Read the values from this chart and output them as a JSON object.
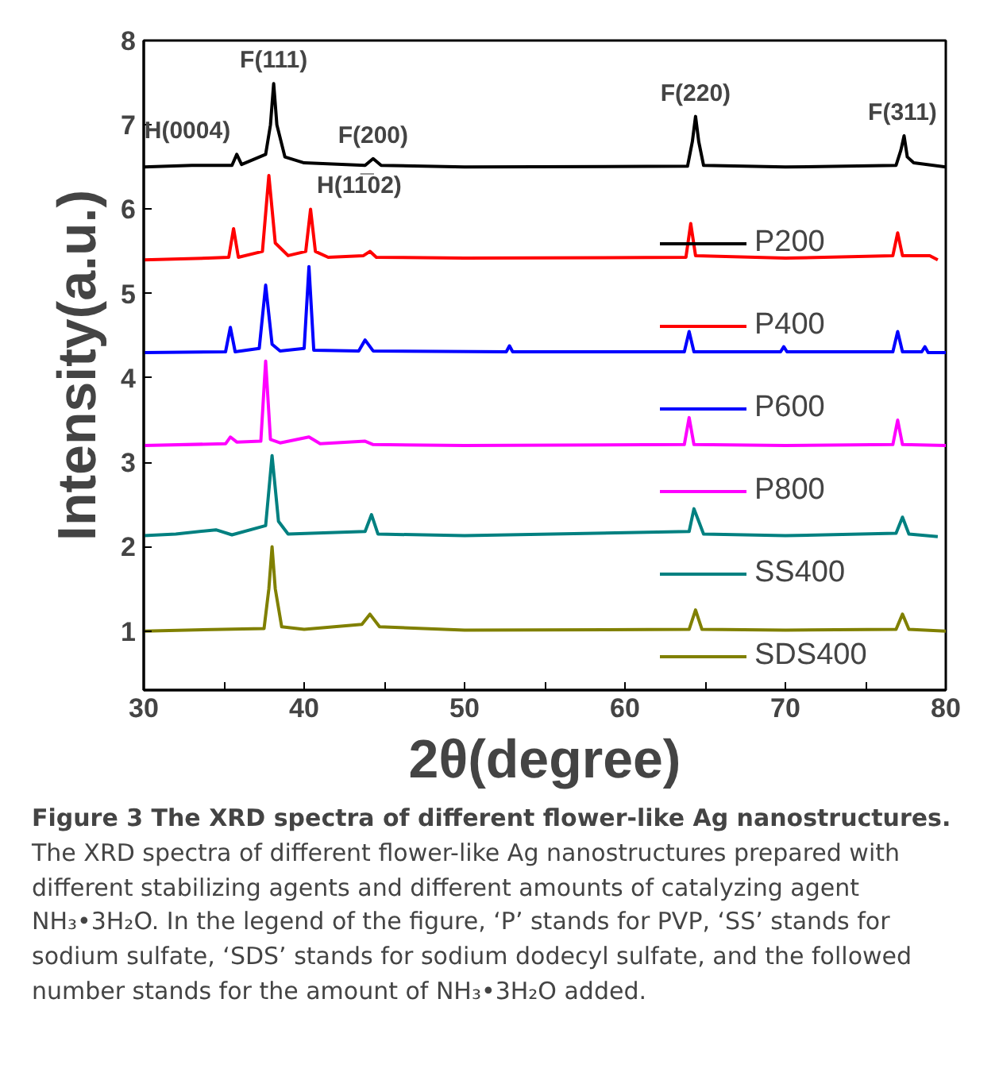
{
  "chart_data": {
    "type": "line",
    "title": "Figure 3 The XRD spectra of different flower-like Ag nanostructures.",
    "xlabel": "2θ(degree)",
    "ylabel": "Intensity(a.u.)",
    "xlim": [
      30,
      80
    ],
    "ylim": [
      0.3,
      8
    ],
    "xticks": [
      30,
      {
        "value": 35,
        "label": null
      },
      40,
      {
        "value": 45,
        "label": null
      },
      50,
      {
        "value": 55,
        "label": null
      },
      60,
      {
        "value": 65,
        "label": null
      },
      70,
      {
        "value": 75,
        "label": null
      },
      80
    ],
    "yticks": [
      1,
      2,
      3,
      4,
      5,
      6,
      7,
      8
    ],
    "grid": false,
    "legend": "right",
    "marker": "none",
    "line_style": "solid",
    "series": [
      {
        "name": "P200",
        "color": "#000000",
        "x": [
          30,
          33,
          35.5,
          35.8,
          36.1,
          37.6,
          37.9,
          38.1,
          38.3,
          38.8,
          40,
          43.8,
          44.3,
          44.8,
          50,
          63.9,
          64.2,
          64.4,
          64.6,
          64.9,
          70,
          76.9,
          77.2,
          77.4,
          77.6,
          78,
          80
        ],
        "values": [
          6.5,
          6.52,
          6.52,
          6.65,
          6.53,
          6.65,
          7.0,
          7.49,
          7.0,
          6.62,
          6.55,
          6.52,
          6.6,
          6.52,
          6.5,
          6.51,
          6.8,
          7.1,
          6.8,
          6.52,
          6.5,
          6.52,
          6.7,
          6.87,
          6.62,
          6.55,
          6.5
        ]
      },
      {
        "name": "P400",
        "color": "#ff0000",
        "x": [
          30,
          34,
          35.3,
          35.6,
          35.9,
          37.4,
          37.8,
          38.2,
          39,
          40.1,
          40.4,
          40.7,
          41.5,
          43.7,
          44.1,
          44.5,
          50,
          63.8,
          64.1,
          64.4,
          70,
          76.7,
          77.0,
          77.3,
          79,
          79.5
        ],
        "values": [
          5.4,
          5.42,
          5.43,
          5.77,
          5.43,
          5.5,
          6.4,
          5.6,
          5.45,
          5.5,
          6.0,
          5.5,
          5.43,
          5.45,
          5.5,
          5.43,
          5.42,
          5.43,
          5.83,
          5.45,
          5.42,
          5.45,
          5.72,
          5.45,
          5.45,
          5.4
        ]
      },
      {
        "name": "P600",
        "color": "#0000ff",
        "x": [
          30,
          35.1,
          35.4,
          35.7,
          37.2,
          37.6,
          38.0,
          38.5,
          40.0,
          40.3,
          40.6,
          43.4,
          43.8,
          44.3,
          52.6,
          52.8,
          53,
          63.7,
          64.0,
          64.3,
          69.7,
          69.9,
          70.1,
          76.7,
          77.0,
          77.3,
          78.5,
          78.7,
          78.9,
          80
        ],
        "values": [
          4.3,
          4.31,
          4.6,
          4.31,
          4.35,
          5.1,
          4.4,
          4.32,
          4.35,
          5.32,
          4.33,
          4.32,
          4.45,
          4.32,
          4.31,
          4.38,
          4.31,
          4.31,
          4.55,
          4.31,
          4.31,
          4.37,
          4.31,
          4.31,
          4.55,
          4.31,
          4.31,
          4.37,
          4.3,
          4.3
        ]
      },
      {
        "name": "P800",
        "color": "#ff00ff",
        "x": [
          30,
          35.1,
          35.4,
          35.8,
          37.3,
          37.6,
          37.9,
          38.5,
          40.3,
          41,
          43.8,
          44.3,
          50,
          63.7,
          64.0,
          64.3,
          70,
          76.7,
          77.0,
          77.3,
          80
        ],
        "values": [
          3.2,
          3.22,
          3.3,
          3.24,
          3.25,
          4.2,
          3.27,
          3.23,
          3.3,
          3.22,
          3.25,
          3.21,
          3.2,
          3.21,
          3.53,
          3.21,
          3.2,
          3.21,
          3.5,
          3.21,
          3.2
        ]
      },
      {
        "name": "SS400",
        "color": "#008080",
        "x": [
          30,
          32,
          34.5,
          35.5,
          37.6,
          38.0,
          38.4,
          39,
          43.8,
          44.2,
          44.6,
          50,
          64.0,
          64.3,
          64.6,
          64.9,
          70,
          76.9,
          77.3,
          77.7,
          79.5
        ],
        "values": [
          2.13,
          2.15,
          2.2,
          2.14,
          2.25,
          3.08,
          2.3,
          2.15,
          2.18,
          2.38,
          2.15,
          2.13,
          2.18,
          2.45,
          2.3,
          2.15,
          2.13,
          2.16,
          2.35,
          2.15,
          2.12
        ]
      },
      {
        "name": "SDS400",
        "color": "#808000",
        "x": [
          30,
          37.5,
          37.8,
          38.0,
          38.2,
          38.6,
          40,
          43.6,
          44.1,
          44.7,
          50,
          64.0,
          64.4,
          64.8,
          70,
          76.9,
          77.3,
          77.7,
          80
        ],
        "values": [
          1.0,
          1.03,
          1.5,
          2.0,
          1.5,
          1.05,
          1.02,
          1.08,
          1.2,
          1.05,
          1.01,
          1.02,
          1.25,
          1.02,
          1.01,
          1.02,
          1.2,
          1.02,
          1.0
        ]
      }
    ],
    "annotations": [
      {
        "text": "H(0004)",
        "x": 35.8,
        "y": 6.65
      },
      {
        "text": "F(111)",
        "x": 38.1,
        "y": 7.49
      },
      {
        "text": "F(200)",
        "x": 44.3,
        "y": 6.6
      },
      {
        "text": "H(11̅02)",
        "x": 40.4,
        "y": 6.0
      },
      {
        "text": "F(220)",
        "x": 64.4,
        "y": 7.1
      },
      {
        "text": "F(311)",
        "x": 77.3,
        "y": 6.87
      },
      "The XRD spectra of different flower-like Ag nanostructures prepared with different stabilizing agents and different amounts of catalyzing agent NH₃•3H₂O. In the legend of the figure, ‘P’ stands for PVP, ‘SS’ stands for sodium sulfate, ‘SDS’ stands for sodium dodecyl sulfate, and the followed number stands for the amount of NH₃•3H₂O added."
    ]
  }
}
